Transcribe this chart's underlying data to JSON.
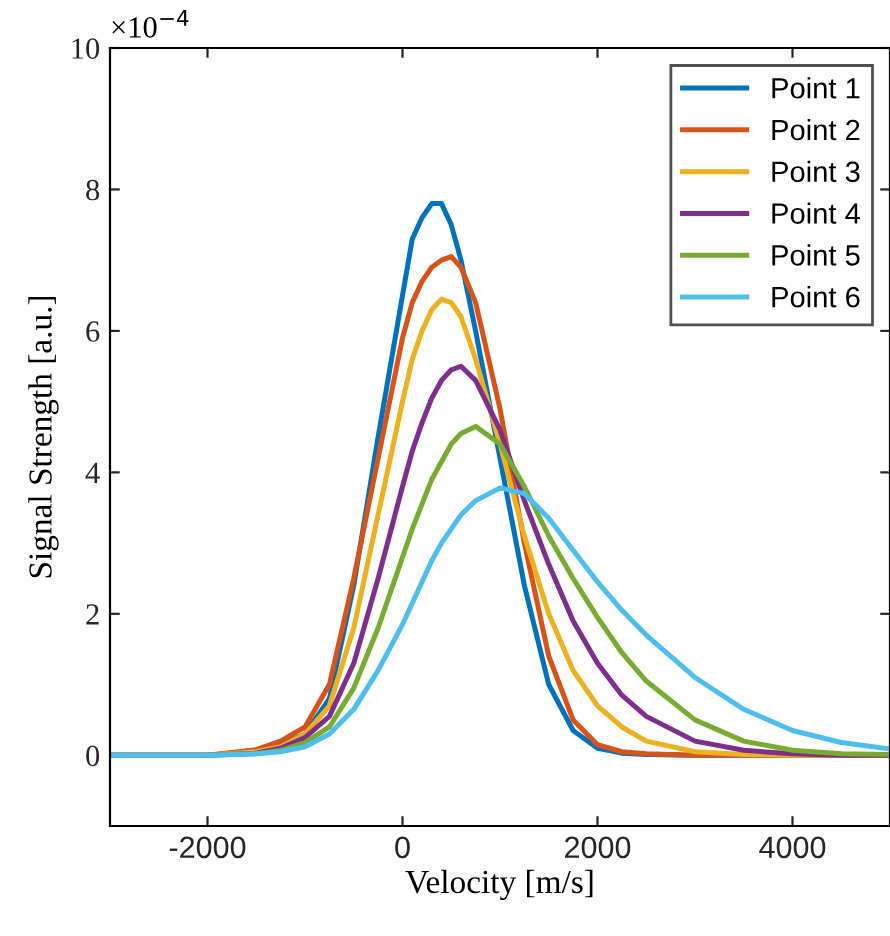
{
  "chart_data": {
    "type": "line",
    "xlabel": "Velocity [m/s]",
    "ylabel": "Signal Strength [a.u.]",
    "annotations": [
      "×10$^{−4}$"
    ],
    "x": [
      -3000,
      -2000,
      -1500,
      -1250,
      -1000,
      -750,
      -500,
      -250,
      0,
      100,
      200,
      300,
      400,
      500,
      600,
      750,
      1000,
      1250,
      1500,
      1750,
      2000,
      2250,
      2500,
      3000,
      3500,
      4000,
      4500,
      5000
    ],
    "xlim": [
      -3000,
      5000
    ],
    "ylim": [
      -1,
      10
    ],
    "xticks": [
      -2000,
      0,
      2000,
      4000
    ],
    "yticks": [
      0,
      2,
      4,
      6,
      8,
      10
    ],
    "grid": false,
    "legend": "top right",
    "series": [
      {
        "name": "Point 1",
        "color": "#0072bd",
        "values": [
          0,
          0,
          0.05,
          0.15,
          0.3,
          0.8,
          2.4,
          4.5,
          6.5,
          7.3,
          7.6,
          7.8,
          7.8,
          7.5,
          7.0,
          6.0,
          4.2,
          2.4,
          1.0,
          0.35,
          0.1,
          0.03,
          0.01,
          0,
          0,
          0,
          0,
          0
        ]
      },
      {
        "name": "Point 2",
        "color": "#d95319",
        "values": [
          0,
          0,
          0.08,
          0.2,
          0.4,
          1.0,
          2.5,
          4.2,
          5.9,
          6.4,
          6.7,
          6.9,
          7.0,
          7.05,
          6.9,
          6.4,
          4.9,
          3.0,
          1.4,
          0.5,
          0.15,
          0.05,
          0.02,
          0,
          0,
          0,
          0,
          0
        ]
      },
      {
        "name": "Point 3",
        "color": "#edb120",
        "values": [
          0,
          0,
          0.05,
          0.12,
          0.3,
          0.7,
          1.8,
          3.4,
          5.0,
          5.6,
          6.0,
          6.3,
          6.45,
          6.4,
          6.2,
          5.6,
          4.4,
          3.1,
          2.0,
          1.2,
          0.7,
          0.4,
          0.2,
          0.05,
          0.01,
          0,
          0,
          0
        ]
      },
      {
        "name": "Point 4",
        "color": "#7e2f8e",
        "values": [
          0,
          0,
          0.03,
          0.1,
          0.25,
          0.55,
          1.3,
          2.5,
          3.8,
          4.3,
          4.7,
          5.05,
          5.3,
          5.45,
          5.5,
          5.3,
          4.6,
          3.6,
          2.7,
          1.9,
          1.3,
          0.85,
          0.55,
          0.2,
          0.07,
          0.02,
          0,
          0
        ]
      },
      {
        "name": "Point 5",
        "color": "#77ac30",
        "values": [
          0,
          0,
          0.02,
          0.07,
          0.18,
          0.4,
          0.95,
          1.8,
          2.8,
          3.2,
          3.55,
          3.9,
          4.15,
          4.4,
          4.55,
          4.65,
          4.4,
          3.8,
          3.1,
          2.5,
          1.95,
          1.45,
          1.05,
          0.5,
          0.2,
          0.07,
          0.02,
          0.01
        ]
      },
      {
        "name": "Point 6",
        "color": "#4dbeee",
        "values": [
          0,
          0,
          0.02,
          0.05,
          0.12,
          0.3,
          0.65,
          1.2,
          1.85,
          2.15,
          2.45,
          2.75,
          3.0,
          3.2,
          3.4,
          3.6,
          3.78,
          3.7,
          3.35,
          2.9,
          2.45,
          2.05,
          1.7,
          1.1,
          0.65,
          0.35,
          0.18,
          0.09
        ]
      }
    ]
  }
}
